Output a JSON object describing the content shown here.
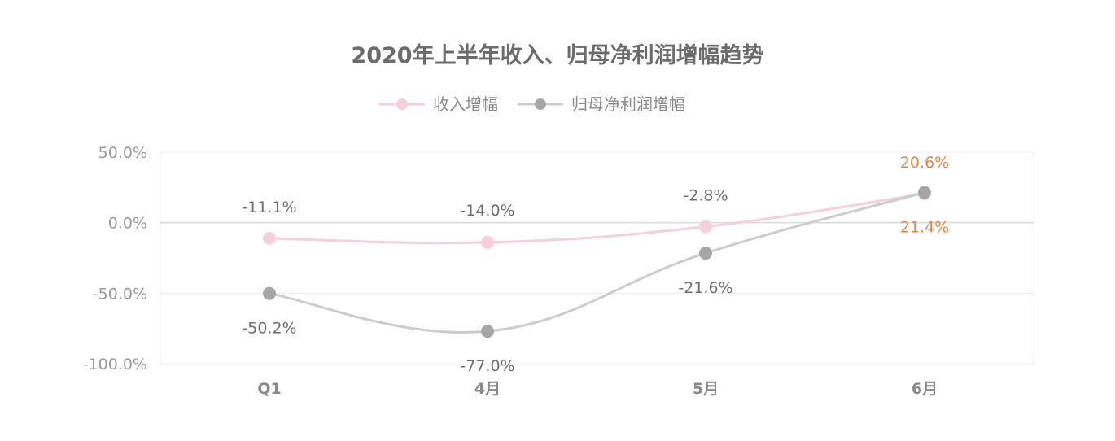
{
  "chart_data": {
    "type": "line",
    "title": "2020年上半年收入、归母净利润增幅趋势",
    "categories": [
      "Q1",
      "4月",
      "5月",
      "6月"
    ],
    "ylim": [
      -100,
      50
    ],
    "yticks": [
      50,
      0,
      -50,
      -100
    ],
    "ytick_labels": [
      "50.0%",
      "0.0%",
      "-50.0%",
      "-100.0%"
    ],
    "grid": true,
    "legend_position": "top-center",
    "series": [
      {
        "name": "收入增幅",
        "color": "#f6cfdc",
        "values": [
          -11.1,
          -14.0,
          -2.8,
          20.6
        ],
        "labels": [
          "-11.1%",
          "-14.0%",
          "-2.8%",
          "20.6%"
        ]
      },
      {
        "name": "归母净利润增幅",
        "color": "#a6a6a6",
        "line_color": "#cccccc",
        "values": [
          -50.2,
          -77.0,
          -21.6,
          21.4
        ],
        "labels": [
          "-50.2%",
          "-77.0%",
          "-21.6%",
          "21.4%"
        ]
      }
    ],
    "accent_label_color": "#e7853f"
  }
}
